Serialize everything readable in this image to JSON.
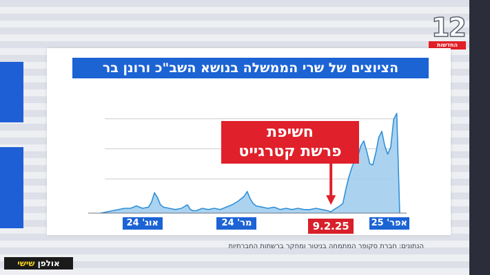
{
  "broadcast": {
    "channel_number": "12",
    "channel_name": "החדשות",
    "show_part1": "אולפן",
    "show_part2": "שישי",
    "source_note": "הנתונים: חברת סקופר המתמחה בניטור ומחקר ברשתות החברתיות"
  },
  "colors": {
    "accent_blue": "#1c63d4",
    "alert_red": "#e0202a",
    "area_fill": "#9ccbed",
    "line": "#2f8fd8"
  },
  "chart_data": {
    "type": "area",
    "title": "הציוצים של שרי הממשלה בנושא השב\"כ ורונן בר",
    "xlabel": "",
    "ylabel": "",
    "grid": true,
    "x_range": [
      0,
      100
    ],
    "ylim": [
      0,
      100
    ],
    "x_tick_labels": [
      {
        "label": "אוג' 24",
        "x": 14,
        "highlight": false
      },
      {
        "label": "מר' 24",
        "x": 45.5,
        "highlight": false
      },
      {
        "label": "9.2.25",
        "x": 77,
        "highlight": true
      },
      {
        "label": "אפר' 25",
        "x": 96.5,
        "highlight": false
      }
    ],
    "annotation": {
      "line1": "חשיפת",
      "line2": "פרשת קטרגייט",
      "x": 77
    },
    "series": [
      {
        "x": [
          0,
          2,
          4,
          6,
          8,
          10,
          12,
          14,
          16,
          17,
          18,
          19,
          20,
          21,
          23,
          25,
          27,
          29,
          30,
          31,
          32,
          34,
          36,
          38,
          40,
          42,
          44,
          46,
          48,
          49,
          50,
          51,
          52,
          54,
          56,
          58,
          60,
          62,
          64,
          66,
          68,
          70,
          72,
          74,
          76,
          77,
          78,
          80,
          81,
          82,
          83,
          84,
          85,
          86,
          87,
          88,
          89,
          90,
          91,
          92,
          93,
          94,
          95,
          96,
          97,
          98,
          99,
          100
        ],
        "y": [
          0,
          1,
          2,
          3,
          4,
          4,
          6,
          4,
          5,
          9,
          17,
          13,
          7,
          5,
          4,
          3,
          4,
          7,
          3,
          2,
          2,
          4,
          3,
          4,
          3,
          5,
          7,
          10,
          14,
          18,
          12,
          8,
          6,
          5,
          4,
          5,
          3,
          4,
          3,
          4,
          3,
          3,
          4,
          3,
          2,
          1,
          3,
          6,
          8,
          20,
          30,
          38,
          44,
          47,
          56,
          60,
          51,
          41,
          40,
          50,
          63,
          68,
          56,
          49,
          55,
          78,
          83,
          0
        ]
      }
    ]
  }
}
